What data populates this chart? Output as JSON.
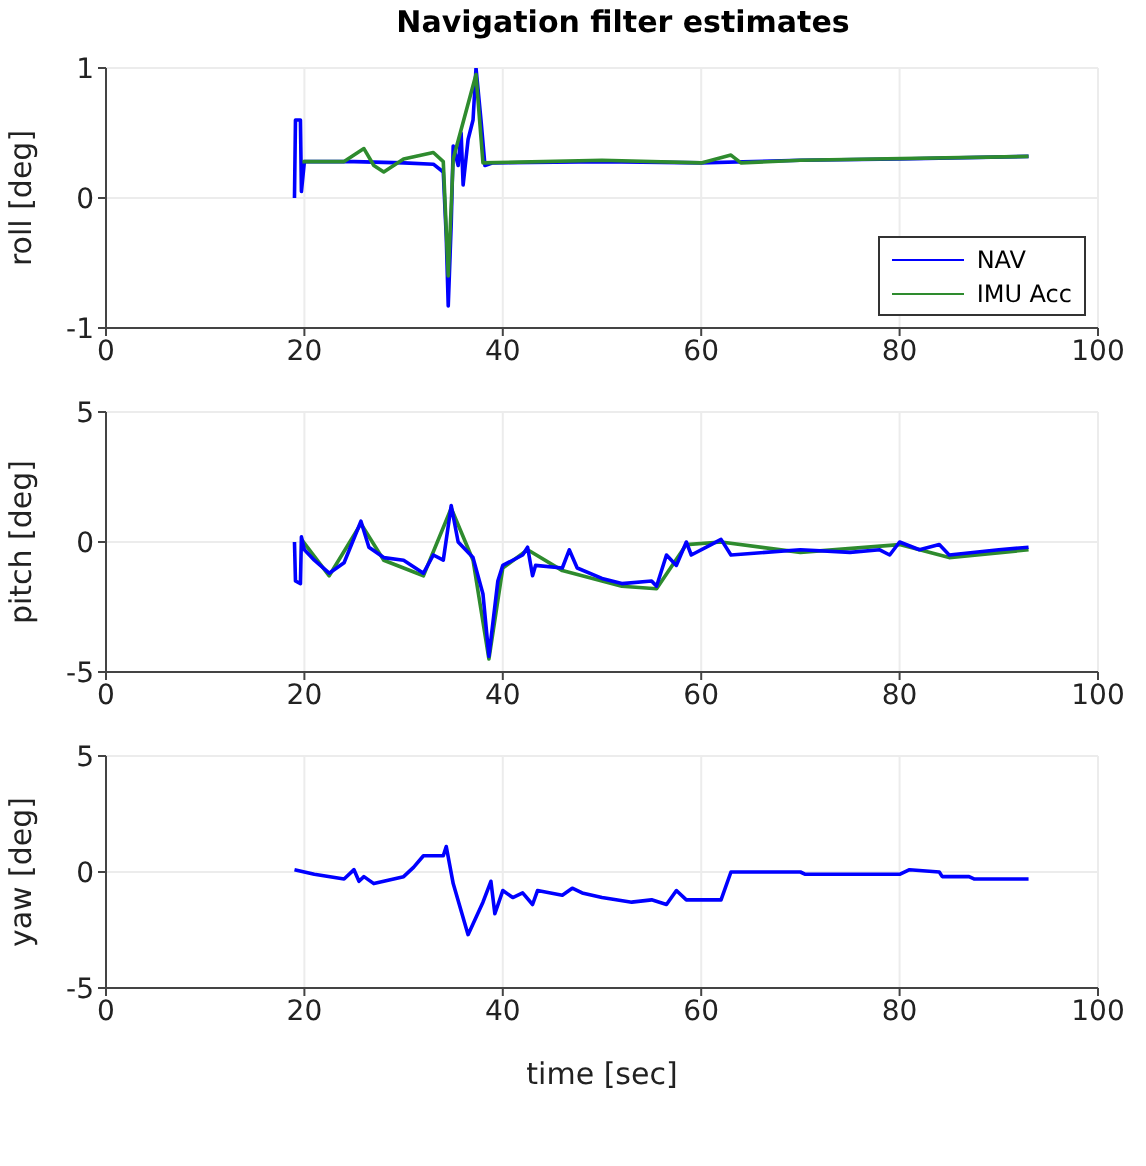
{
  "chart_data": [
    {
      "type": "line",
      "title": "Navigation filter estimates",
      "ylabel": "roll [deg]",
      "xlim": [
        0,
        100
      ],
      "xticks": [
        0,
        20,
        40,
        60,
        80,
        100
      ],
      "ylim": [
        -1,
        1
      ],
      "yticks": [
        -1,
        0,
        1
      ],
      "grid": true,
      "legend": "bottom right",
      "series": [
        {
          "name": "NAV",
          "color": "#0000ff",
          "x": [
            19,
            19.1,
            19.6,
            19.7,
            20,
            25,
            30,
            33,
            34,
            34.3,
            34.5,
            34.8,
            35,
            35.5,
            35.8,
            36,
            36.5,
            37,
            37.3,
            37.8,
            38.2,
            39,
            50,
            60,
            70,
            80,
            93
          ],
          "values": [
            0,
            0.6,
            0.6,
            0.05,
            0.28,
            0.28,
            0.27,
            0.26,
            0.2,
            -0.3,
            -0.83,
            -0.2,
            0.4,
            0.25,
            0.5,
            0.1,
            0.45,
            0.6,
            1.0,
            0.6,
            0.25,
            0.27,
            0.28,
            0.27,
            0.29,
            0.3,
            0.32
          ]
        },
        {
          "name": "IMU Acc",
          "color": "#2e8b2e",
          "x": [
            19.8,
            24,
            26,
            27,
            28,
            30,
            33,
            34,
            34.5,
            35,
            37.3,
            38,
            50,
            60,
            63,
            64,
            70,
            93
          ],
          "values": [
            0.28,
            0.28,
            0.38,
            0.25,
            0.2,
            0.3,
            0.35,
            0.28,
            -0.6,
            0.3,
            0.95,
            0.27,
            0.29,
            0.27,
            0.33,
            0.27,
            0.29,
            0.32
          ]
        }
      ]
    },
    {
      "type": "line",
      "ylabel": "pitch [deg]",
      "xlim": [
        0,
        100
      ],
      "xticks": [
        0,
        20,
        40,
        60,
        80,
        100
      ],
      "ylim": [
        -5,
        5
      ],
      "yticks": [
        -5,
        0,
        5
      ],
      "grid": true,
      "series": [
        {
          "color": "#2e8b2e",
          "x": [
            19.7,
            22.5,
            25.7,
            28,
            32,
            34.8,
            37,
            38.6,
            40,
            42.5,
            46,
            50,
            52,
            55.5,
            58.5,
            62,
            70,
            80,
            85,
            93
          ],
          "values": [
            0.1,
            -1.3,
            0.7,
            -0.7,
            -1.3,
            1.3,
            -0.7,
            -4.5,
            -1.0,
            -0.3,
            -1.1,
            -1.5,
            -1.7,
            -1.8,
            -0.1,
            0,
            -0.4,
            -0.1,
            -0.6,
            -0.3
          ]
        },
        {
          "color": "#0000ff",
          "x": [
            19,
            19.1,
            19.6,
            19.7,
            20,
            21,
            22.5,
            24,
            25.7,
            26.5,
            28,
            30,
            32,
            33,
            34,
            34.8,
            35.5,
            37,
            38,
            38.6,
            39.5,
            40,
            42,
            42.5,
            43,
            43.3,
            46,
            46.7,
            47.5,
            50,
            52,
            55,
            55.5,
            56.5,
            57.5,
            58.5,
            59,
            61,
            62,
            63,
            70,
            75,
            78,
            79,
            80,
            82,
            84,
            85,
            90,
            93
          ],
          "values": [
            0,
            -1.5,
            -1.6,
            0.2,
            -0.3,
            -0.7,
            -1.2,
            -0.8,
            0.8,
            -0.2,
            -0.6,
            -0.7,
            -1.2,
            -0.5,
            -0.7,
            1.4,
            0,
            -0.6,
            -2.0,
            -4.4,
            -1.5,
            -0.9,
            -0.5,
            -0.2,
            -1.3,
            -0.9,
            -1,
            -0.3,
            -1,
            -1.4,
            -1.6,
            -1.5,
            -1.7,
            -0.5,
            -0.9,
            0,
            -0.5,
            -0.1,
            0.1,
            -0.5,
            -0.3,
            -0.4,
            -0.3,
            -0.5,
            0,
            -0.3,
            -0.1,
            -0.5,
            -0.3,
            -0.2
          ]
        }
      ]
    },
    {
      "type": "line",
      "ylabel": "yaw [deg]",
      "xlabel": "time [sec]",
      "xlim": [
        0,
        100
      ],
      "xticks": [
        0,
        20,
        40,
        60,
        80,
        100
      ],
      "ylim": [
        -5,
        5
      ],
      "yticks": [
        -5,
        0,
        5
      ],
      "grid": true,
      "series": [
        {
          "color": "#0000ff",
          "x": [
            19,
            21,
            24,
            25,
            25.5,
            26,
            27,
            29,
            30,
            31,
            32,
            34,
            34.3,
            35,
            36.5,
            38,
            38.8,
            39.2,
            40,
            41,
            42,
            43,
            43.5,
            46,
            47,
            48,
            50,
            53,
            55,
            56.5,
            57.5,
            58.5,
            62,
            63,
            70,
            70.5,
            80,
            81,
            84,
            84.3,
            87,
            87.5,
            93
          ],
          "values": [
            0.1,
            -0.1,
            -0.3,
            0.1,
            -0.4,
            -0.2,
            -0.5,
            -0.3,
            -0.2,
            0.2,
            0.7,
            0.7,
            1.1,
            -0.5,
            -2.7,
            -1.3,
            -0.4,
            -1.8,
            -0.8,
            -1.1,
            -0.9,
            -1.4,
            -0.8,
            -1,
            -0.7,
            -0.9,
            -1.1,
            -1.3,
            -1.2,
            -1.4,
            -0.8,
            -1.2,
            -1.2,
            0,
            0,
            -0.1,
            -0.1,
            0.1,
            0,
            -0.2,
            -0.2,
            -0.3,
            -0.3
          ]
        }
      ]
    }
  ]
}
